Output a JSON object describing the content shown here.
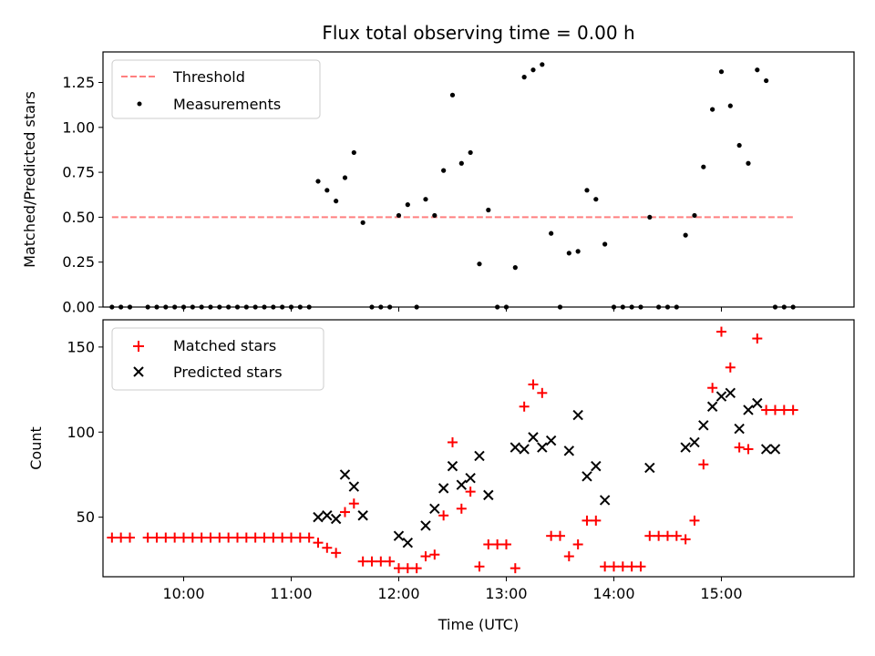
{
  "chart_data": [
    {
      "type": "scatter",
      "title": "Flux total observing time = 0.00 h",
      "xlabel": "",
      "ylabel": "Matched/Predicted stars",
      "ylim": [
        0,
        1.42
      ],
      "xlim": [
        "09:15",
        "16:14"
      ],
      "xticks": [
        "10:00",
        "11:00",
        "12:00",
        "13:00",
        "14:00",
        "15:00"
      ],
      "yticks": [
        "0.00",
        "0.25",
        "0.50",
        "0.75",
        "1.00",
        "1.25"
      ],
      "yticks_values": [
        0,
        0.25,
        0.5,
        0.75,
        1.0,
        1.25
      ],
      "grid": false,
      "legend": "top-left",
      "threshold": {
        "name": "Threshold",
        "value": 0.5,
        "x_start": "09:20",
        "x_end": "15:40",
        "color": "#ff7f7f"
      },
      "series": [
        {
          "name": "Measurements",
          "color": "#000000",
          "x": [
            "09:20",
            "09:25",
            "09:30",
            "09:40",
            "09:45",
            "09:50",
            "09:55",
            "10:00",
            "10:05",
            "10:10",
            "10:15",
            "10:20",
            "10:25",
            "10:30",
            "10:35",
            "10:40",
            "10:45",
            "10:50",
            "10:55",
            "11:00",
            "11:05",
            "11:10",
            "11:15",
            "11:20",
            "11:25",
            "11:30",
            "11:35",
            "11:40",
            "11:45",
            "11:50",
            "11:55",
            "12:00",
            "12:05",
            "12:10",
            "12:15",
            "12:20",
            "12:25",
            "12:30",
            "12:35",
            "12:40",
            "12:45",
            "12:50",
            "12:55",
            "13:00",
            "13:05",
            "13:10",
            "13:15",
            "13:20",
            "13:25",
            "13:30",
            "13:35",
            "13:40",
            "13:45",
            "13:50",
            "13:55",
            "14:00",
            "14:05",
            "14:10",
            "14:15",
            "14:20",
            "14:25",
            "14:30",
            "14:35",
            "14:40",
            "14:45",
            "14:50",
            "14:55",
            "15:00",
            "15:05",
            "15:10",
            "15:15",
            "15:20",
            "15:25",
            "15:30",
            "15:35",
            "15:40"
          ],
          "y": [
            0,
            0,
            0,
            0,
            0,
            0,
            0,
            0,
            0,
            0,
            0,
            0,
            0,
            0,
            0,
            0,
            0,
            0,
            0,
            0,
            0,
            0,
            0.7,
            0.65,
            0.59,
            0.72,
            0.86,
            0.47,
            0,
            0,
            0,
            0.51,
            0.57,
            0,
            0.6,
            0.51,
            0.76,
            1.18,
            0.8,
            0.86,
            0.24,
            0.54,
            0,
            0,
            0.22,
            1.28,
            1.32,
            1.35,
            0.41,
            0,
            0.3,
            0.31,
            0.65,
            0.6,
            0.35,
            0,
            0,
            0,
            0,
            0.5,
            0,
            0,
            0,
            0.4,
            0.51,
            0.78,
            1.1,
            1.31,
            1.12,
            0.9,
            0.8,
            1.32,
            1.26,
            0,
            0,
            0
          ]
        }
      ]
    },
    {
      "type": "scatter",
      "title": "",
      "xlabel": "Time (UTC)",
      "ylabel": "Count",
      "ylim": [
        15,
        166
      ],
      "xlim": [
        "09:15",
        "16:14"
      ],
      "xticks": [
        "10:00",
        "11:00",
        "12:00",
        "13:00",
        "14:00",
        "15:00"
      ],
      "yticks": [
        "50",
        "100",
        "150"
      ],
      "yticks_values": [
        50,
        100,
        150
      ],
      "grid": false,
      "legend": "top-left",
      "series": [
        {
          "name": "Matched stars",
          "color": "#ff0000",
          "marker": "plus",
          "x": [
            "09:20",
            "09:25",
            "09:30",
            "09:40",
            "09:45",
            "09:50",
            "09:55",
            "10:00",
            "10:05",
            "10:10",
            "10:15",
            "10:20",
            "10:25",
            "10:30",
            "10:35",
            "10:40",
            "10:45",
            "10:50",
            "10:55",
            "11:00",
            "11:05",
            "11:10",
            "11:15",
            "11:20",
            "11:25",
            "11:30",
            "11:35",
            "11:40",
            "11:45",
            "11:50",
            "11:55",
            "12:00",
            "12:05",
            "12:10",
            "12:15",
            "12:20",
            "12:25",
            "12:30",
            "12:35",
            "12:40",
            "12:45",
            "12:50",
            "12:55",
            "13:00",
            "13:05",
            "13:10",
            "13:15",
            "13:20",
            "13:25",
            "13:30",
            "13:35",
            "13:40",
            "13:45",
            "13:50",
            "13:55",
            "14:00",
            "14:05",
            "14:10",
            "14:15",
            "14:20",
            "14:25",
            "14:30",
            "14:35",
            "14:40",
            "14:45",
            "14:50",
            "14:55",
            "15:00",
            "15:05",
            "15:10",
            "15:15",
            "15:20",
            "15:25",
            "15:30",
            "15:35",
            "15:40"
          ],
          "y": [
            38,
            38,
            38,
            38,
            38,
            38,
            38,
            38,
            38,
            38,
            38,
            38,
            38,
            38,
            38,
            38,
            38,
            38,
            38,
            38,
            38,
            38,
            35,
            32,
            29,
            53,
            58,
            24,
            24,
            24,
            24,
            20,
            20,
            20,
            27,
            28,
            51,
            94,
            55,
            65,
            21,
            34,
            34,
            34,
            20,
            115,
            128,
            123,
            39,
            39,
            27,
            34,
            48,
            48,
            21,
            21,
            21,
            21,
            21,
            39,
            39,
            39,
            39,
            37,
            48,
            81,
            126,
            159,
            138,
            91,
            90,
            155,
            113,
            113,
            113,
            113
          ]
        },
        {
          "name": "Predicted stars",
          "color": "#000000",
          "marker": "x",
          "x": [
            "11:15",
            "11:20",
            "11:25",
            "11:30",
            "11:35",
            "11:40",
            "12:00",
            "12:05",
            "12:15",
            "12:20",
            "12:25",
            "12:30",
            "12:35",
            "12:40",
            "12:45",
            "12:50",
            "13:05",
            "13:10",
            "13:15",
            "13:20",
            "13:25",
            "13:35",
            "13:40",
            "13:45",
            "13:50",
            "13:55",
            "14:20",
            "14:40",
            "14:45",
            "14:50",
            "14:55",
            "15:00",
            "15:05",
            "15:10",
            "15:15",
            "15:20",
            "15:25",
            "15:30"
          ],
          "y": [
            50,
            51,
            49,
            75,
            68,
            51,
            39,
            35,
            45,
            55,
            67,
            80,
            69,
            73,
            86,
            63,
            91,
            90,
            97,
            91,
            95,
            89,
            110,
            74,
            80,
            60,
            79,
            91,
            94,
            104,
            115,
            121,
            123,
            102,
            113,
            117,
            90,
            90
          ]
        }
      ]
    }
  ]
}
